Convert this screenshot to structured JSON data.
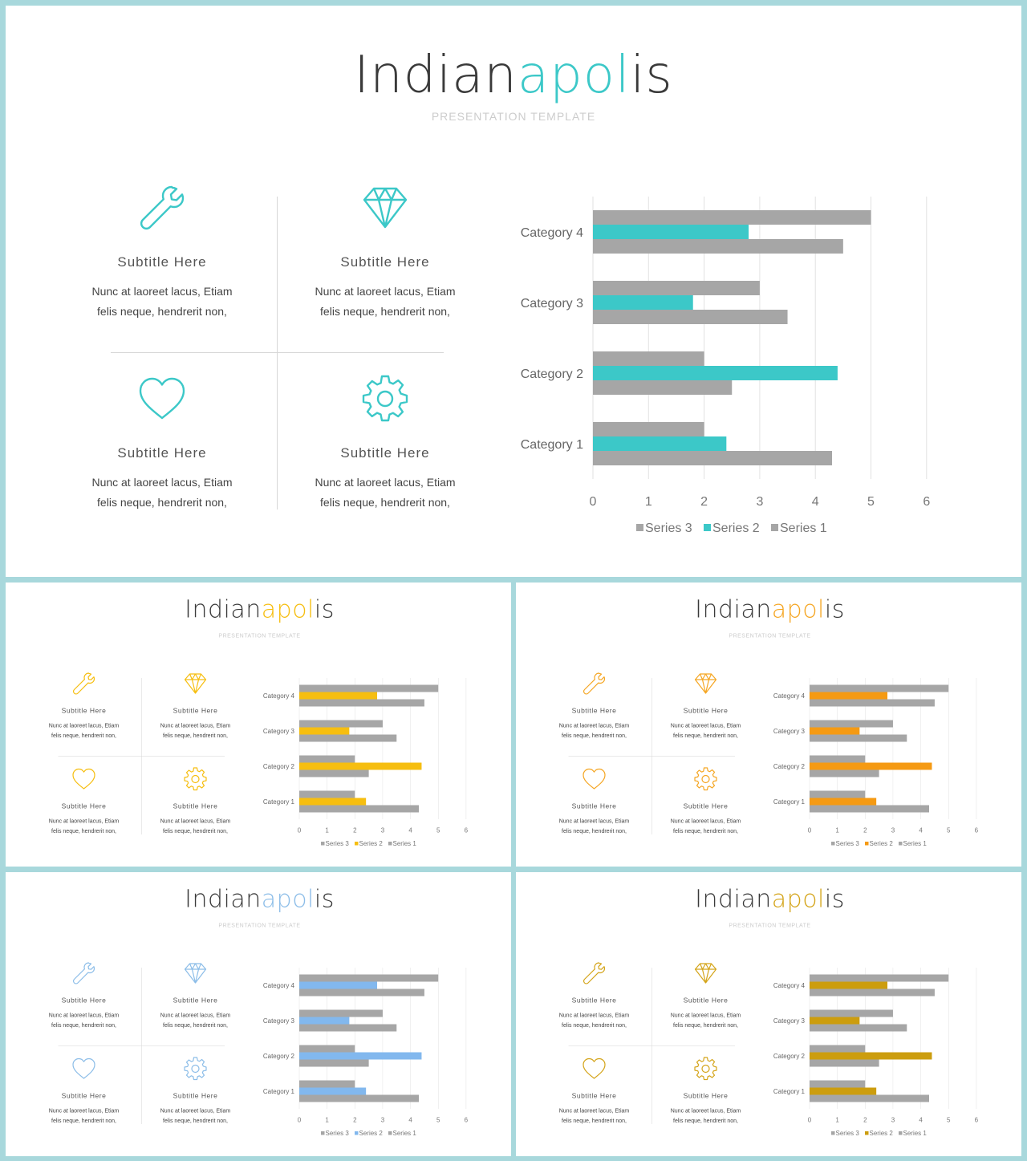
{
  "slides": [
    {
      "id": "main",
      "accent": "#3cc8c8",
      "series2_color": "#3cc8c8",
      "icon_color": "#3cc8c8"
    },
    {
      "id": "yellow",
      "accent": "#f6be10",
      "series2_color": "#f6be10",
      "icon_color": "#f6be10"
    },
    {
      "id": "orange",
      "accent": "#f5a623",
      "series2_color": "#f59a13",
      "icon_color": "#f5a623"
    },
    {
      "id": "blue",
      "accent": "#8cbde8",
      "series2_color": "#82b8ee",
      "icon_color": "#8cbde8"
    },
    {
      "id": "gold",
      "accent": "#d4a419",
      "series2_color": "#cc9d0e",
      "icon_color": "#d4a419"
    }
  ],
  "title_part1": "Indian",
  "title_part2": "apol",
  "title_part3": "is",
  "presentation_subtitle": "PRESENTATION TEMPLATE",
  "features": [
    {
      "icon": "wrench-icon",
      "title": "Subtitle  Here",
      "line1": "Nunc  at  laoreet  lacus,  Etiam",
      "line2": "felis  neque,  hendrerit  non,"
    },
    {
      "icon": "diamond-icon",
      "title": "Subtitle  Here",
      "line1": "Nunc  at  laoreet  lacus,  Etiam",
      "line2": "felis  neque,  hendrerit  non,"
    },
    {
      "icon": "heart-icon",
      "title": "Subtitle  Here",
      "line1": "Nunc  at  laoreet  lacus,  Etiam",
      "line2": "felis  neque,  hendrerit  non,"
    },
    {
      "icon": "gear-icon",
      "title": "Subtitle  Here",
      "line1": "Nunc  at  laoreet  lacus,  Etiam",
      "line2": "felis  neque,  hendrerit  non,"
    }
  ],
  "chart_data": {
    "type": "bar",
    "orientation": "horizontal",
    "categories": [
      "Category 1",
      "Category 2",
      "Category 3",
      "Category 4"
    ],
    "series": [
      {
        "name": "Series 1",
        "values": [
          4.3,
          2.5,
          3.5,
          4.5
        ],
        "color": "#a6a6a6"
      },
      {
        "name": "Series 2",
        "values": [
          2.4,
          4.4,
          1.8,
          2.8
        ]
      },
      {
        "name": "Series 3",
        "values": [
          2,
          2,
          3,
          5
        ],
        "color": "#a6a6a6"
      }
    ],
    "legend_order": [
      "Series 3",
      "Series 2",
      "Series 1"
    ],
    "xlim": [
      0,
      6
    ],
    "xticks": [
      "0",
      "1",
      "2",
      "3",
      "4",
      "5",
      "6"
    ],
    "grid": true,
    "legend": "bottom"
  }
}
